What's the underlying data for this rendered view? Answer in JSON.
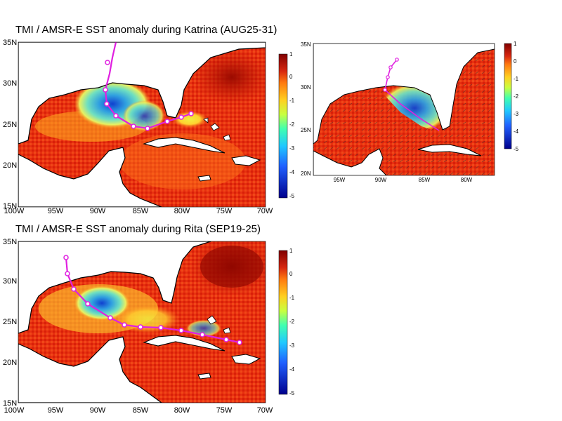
{
  "panels": [
    {
      "id": "katrina",
      "title": "TMI / AMSR-E SST anomaly during Katrina (AUG25-31)",
      "x_ticks": [
        "100W",
        "95W",
        "90W",
        "85W",
        "80W",
        "75W",
        "70W"
      ],
      "y_ticks": [
        "35N",
        "30N",
        "25N",
        "20N",
        "15N"
      ],
      "track": [
        [
          -78.0,
          26.2
        ],
        [
          -80.0,
          26.0
        ],
        [
          -82.3,
          25.2
        ],
        [
          -84.5,
          24.4
        ],
        [
          -86.5,
          24.8
        ],
        [
          -88.5,
          26.2
        ],
        [
          -89.6,
          27.5
        ],
        [
          -89.5,
          29.2
        ],
        [
          -89.0,
          31.5
        ],
        [
          -88.5,
          33.5
        ],
        [
          -88.0,
          35.2
        ]
      ],
      "cold_pool": [
        {
          "lon": -88.0,
          "lat": 27.5,
          "anomaly": -3.5
        },
        {
          "lon": -86.0,
          "lat": 26.5,
          "anomaly": -2.5
        },
        {
          "lon": -89.0,
          "lat": 25.5,
          "anomaly": -1.0
        }
      ]
    },
    {
      "id": "rita",
      "title": "TMI / AMSR-E SST anomaly during Rita (SEP19-25)",
      "x_ticks": [
        "100W",
        "95W",
        "90W",
        "85W",
        "80W",
        "75W",
        "70W"
      ],
      "y_ticks": [
        "35N",
        "30N",
        "25N",
        "20N",
        "15N"
      ],
      "track": [
        [
          -73.2,
          22.2
        ],
        [
          -74.8,
          22.6
        ],
        [
          -77.8,
          23.2
        ],
        [
          -80.3,
          23.6
        ],
        [
          -82.8,
          24.0
        ],
        [
          -85.0,
          24.1
        ],
        [
          -87.0,
          24.4
        ],
        [
          -89.0,
          25.2
        ],
        [
          -90.8,
          26.8
        ],
        [
          -92.5,
          28.5
        ],
        [
          -93.5,
          30.5
        ],
        [
          -93.7,
          32.8
        ]
      ],
      "cold_pool": [
        {
          "lon": -90.0,
          "lat": 27.0,
          "anomaly": -3.0
        },
        {
          "lon": -91.5,
          "lat": 26.0,
          "anomaly": -1.5
        }
      ]
    },
    {
      "id": "katrina-winds",
      "x_ticks": [
        "95W",
        "90W",
        "85W",
        "80W"
      ],
      "y_ticks": [
        "35N",
        "30N",
        "25N",
        "20N"
      ],
      "track": [
        [
          -89.5,
          29.5
        ],
        [
          -89.2,
          30.5
        ],
        [
          -88.8,
          31.8
        ],
        [
          -88.0,
          33.5
        ]
      ],
      "cold_pool": [
        {
          "lon": -87.5,
          "lat": 27.5,
          "anomaly": -3.0
        },
        {
          "lon": -86.0,
          "lat": 26.0,
          "anomaly": -2.0
        }
      ]
    }
  ],
  "colorbar_large": [
    "1",
    "0",
    "-1",
    "-2",
    "-3",
    "-4",
    "-5"
  ],
  "colorbar_small": [
    "1",
    "0",
    "-1",
    "-2",
    "-3",
    "-4",
    "-5"
  ],
  "colors": {
    "warm": "#d82810",
    "mid": "#ff8a1a",
    "yellow": "#f0e040",
    "cyan": "#40c0e0",
    "blue": "#1040d0",
    "track": "#e020e0",
    "land": "#ffffff"
  }
}
